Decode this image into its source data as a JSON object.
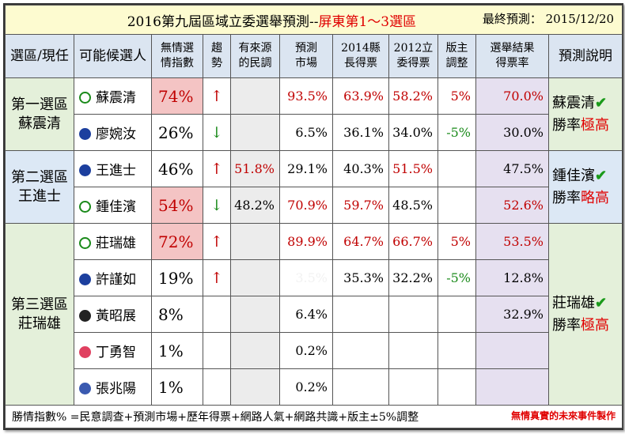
{
  "header": {
    "title": "2016第九屆區域立委選舉預測--",
    "title_highlight": "屏東第1～3選區",
    "final_label": "最終預測：",
    "final_date": "2015/12/20"
  },
  "table": {
    "columns": [
      "選區/現任",
      "可能候選人",
      "無情選\n情指數",
      "趨\n勢",
      "有來源\n的民調",
      "預測\n市場",
      "2014縣\n長得票",
      "2012立\n委得票",
      "版主\n調整",
      "選舉結果\n得票率",
      "預測說明"
    ],
    "districts": [
      {
        "name": "第一選區",
        "incumbent": "蘇震清",
        "forecast": {
          "winner": "蘇震清",
          "label": "勝率",
          "level": "極高"
        },
        "rows": [
          [
            "蘇震清",
            "74%",
            "↑",
            null,
            "93.5%",
            "63.9%",
            "58.2%",
            "5%",
            "70.0%"
          ],
          [
            "廖婉汝",
            "26%",
            "↓",
            null,
            "6.5%",
            "36.1%",
            "34.0%",
            "-5%",
            "30.0%"
          ]
        ]
      },
      {
        "name": "第二選區",
        "incumbent": "王進士",
        "forecast": {
          "winner": "鍾佳濱",
          "label": "勝率",
          "level": "略高"
        },
        "rows": [
          [
            "王進士",
            "46%",
            "↑",
            "51.8%",
            "29.1%",
            "40.3%",
            "51.5%",
            null,
            "47.5%"
          ],
          [
            "鍾佳濱",
            "54%",
            "↓",
            "48.2%",
            "70.9%",
            "59.7%",
            "48.5%",
            null,
            "52.6%"
          ]
        ]
      },
      {
        "name": "第三選區",
        "incumbent": "莊瑞雄",
        "forecast": {
          "winner": "莊瑞雄",
          "label": "勝率",
          "level": "極高"
        },
        "rows": [
          [
            "莊瑞雄",
            "72%",
            "↑",
            null,
            "89.9%",
            "64.7%",
            "66.7%",
            "5%",
            "53.5%"
          ],
          [
            "許謹如",
            "19%",
            "↑",
            null,
            "3.5%",
            "35.3%",
            "32.2%",
            "-5%",
            "12.8%"
          ],
          [
            "黃昭展",
            "8%",
            null,
            null,
            "6.4%",
            null,
            null,
            null,
            "32.9%"
          ],
          [
            "丁勇智",
            "1%",
            null,
            null,
            "0.2%",
            null,
            null,
            null,
            null
          ],
          [
            "張兆陽",
            "1%",
            null,
            null,
            "0.2%",
            null,
            null,
            null,
            null
          ]
        ]
      }
    ]
  },
  "footer": {
    "formula": "勝情指數% =民意調查+預測市場+歷年得票+網路人氣+網路共識+版主±5%調整",
    "credit": "無情真實的未來事件製作"
  }
}
